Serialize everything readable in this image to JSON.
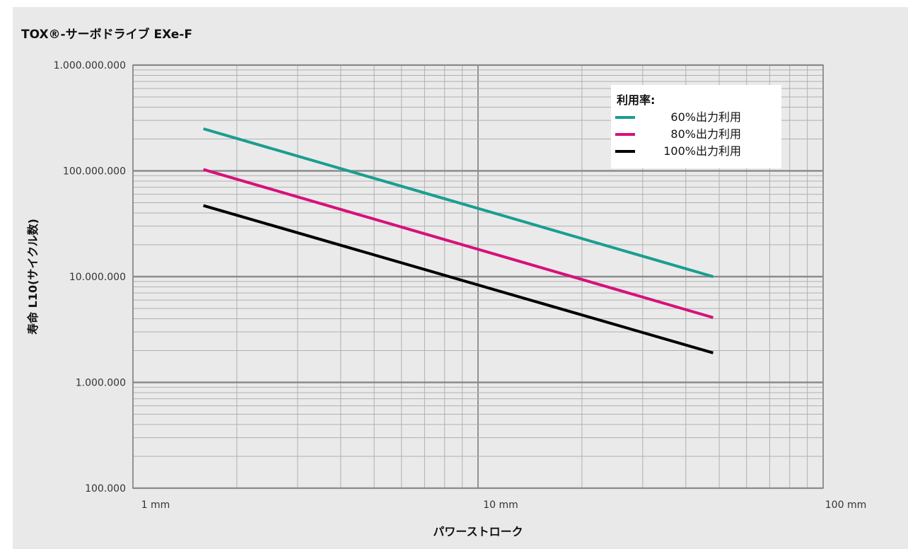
{
  "chart_data": {
    "type": "line",
    "title": "TOX®-サーボドライブ EXe-F",
    "xlabel": "パワーストローク",
    "ylabel": "寿命 L10(サイクル数)",
    "x_scale": "log",
    "y_scale": "log",
    "xlim": [
      1,
      100
    ],
    "ylim": [
      100000,
      1000000000
    ],
    "x_tick_labels": [
      "1 mm",
      "10 mm",
      "100 mm"
    ],
    "y_tick_labels": [
      "100.000",
      "1.000.000",
      "10.000.000",
      "100.000.000",
      "1.000.000.000"
    ],
    "grid": true,
    "legend_title": "利用率:",
    "legend_position": "top-right",
    "series": [
      {
        "name": "60%出力利用",
        "color": "#1a9e8f",
        "x": [
          1.6,
          48
        ],
        "y": [
          250000000,
          10000000
        ]
      },
      {
        "name": "80%出力利用",
        "color": "#d6117a",
        "x": [
          1.6,
          48
        ],
        "y": [
          103000000,
          4100000
        ]
      },
      {
        "name": "100%出力利用",
        "color": "#000000",
        "x": [
          1.6,
          48
        ],
        "y": [
          47000000,
          1900000
        ]
      }
    ]
  }
}
